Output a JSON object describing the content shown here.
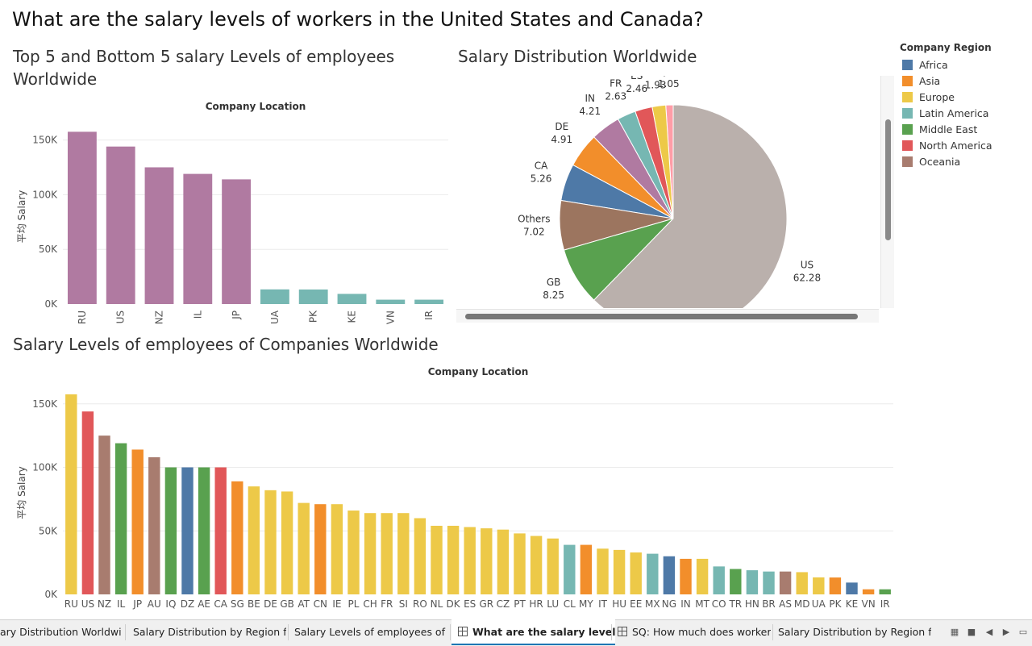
{
  "title": "What are the salary levels of workers in the United States and Canada?",
  "colors": {
    "Africa": "#4e79a7",
    "Asia": "#f28e2b",
    "Europe": "#edc948",
    "Latin America": "#76b7b2",
    "Middle East": "#59a14f",
    "North America": "#e15759",
    "Oceania": "#a87c6f"
  },
  "legend": {
    "title": "Company Region",
    "items": [
      "Africa",
      "Asia",
      "Europe",
      "Latin America",
      "Middle East",
      "North America",
      "Oceania"
    ]
  },
  "chart_data": [
    {
      "id": "top-bottom",
      "type": "bar",
      "title": "Top 5 and Bottom 5 salary Levels of employees Worldwide",
      "header": "Company Location",
      "ylabel": "平均 Salary",
      "yticks": [
        0,
        50000,
        100000,
        150000
      ],
      "ytick_labels": [
        "0K",
        "50K",
        "100K",
        "150K"
      ],
      "ylim": [
        0,
        160000
      ],
      "categories": [
        "RU",
        "US",
        "NZ",
        "IL",
        "JP",
        "UA",
        "PK",
        "KE",
        "VN",
        "IR"
      ],
      "values": [
        157500,
        144000,
        125000,
        119000,
        114000,
        13400,
        13300,
        9300,
        4000,
        4000
      ],
      "bar_colors": [
        "#b07aa1",
        "#b07aa1",
        "#b07aa1",
        "#b07aa1",
        "#b07aa1",
        "#76b7b2",
        "#76b7b2",
        "#76b7b2",
        "#76b7b2",
        "#76b7b2"
      ]
    },
    {
      "id": "pie",
      "type": "pie",
      "title": "Salary Distribution Worldwide",
      "slices": [
        {
          "label": "JP",
          "value": 1.05,
          "color": "#ff9da7"
        },
        {
          "label": "GR",
          "value": 1.93,
          "color": "#edc948"
        },
        {
          "label": "ES",
          "value": 2.46,
          "color": "#e15759"
        },
        {
          "label": "FR",
          "value": 2.63,
          "color": "#76b7b2"
        },
        {
          "label": "IN",
          "value": 4.21,
          "color": "#b07aa1"
        },
        {
          "label": "DE",
          "value": 4.91,
          "color": "#f28e2b"
        },
        {
          "label": "CA",
          "value": 5.26,
          "color": "#4e79a7"
        },
        {
          "label": "Others",
          "value": 7.02,
          "color": "#9c755f"
        },
        {
          "label": "GB",
          "value": 8.25,
          "color": "#59a14f"
        },
        {
          "label": "US",
          "value": 62.28,
          "color": "#bab0ac"
        }
      ]
    },
    {
      "id": "all-countries",
      "type": "bar",
      "title": "Salary Levels of employees of Companies Worldwide",
      "header": "Company Location",
      "ylabel": "平均 Salary",
      "yticks": [
        0,
        50000,
        100000,
        150000
      ],
      "ytick_labels": [
        "0K",
        "50K",
        "100K",
        "150K"
      ],
      "ylim": [
        0,
        160000
      ],
      "categories": [
        "RU",
        "US",
        "NZ",
        "IL",
        "JP",
        "AU",
        "IQ",
        "DZ",
        "AE",
        "CA",
        "SG",
        "BE",
        "DE",
        "GB",
        "AT",
        "CN",
        "IE",
        "PL",
        "CH",
        "FR",
        "SI",
        "RO",
        "NL",
        "DK",
        "ES",
        "GR",
        "CZ",
        "PT",
        "HR",
        "LU",
        "CL",
        "MY",
        "IT",
        "HU",
        "EE",
        "MX",
        "NG",
        "IN",
        "MT",
        "CO",
        "TR",
        "HN",
        "BR",
        "AS",
        "MD",
        "UA",
        "PK",
        "KE",
        "VN",
        "IR"
      ],
      "regions": [
        "Europe",
        "North America",
        "Oceania",
        "Middle East",
        "Asia",
        "Oceania",
        "Middle East",
        "Africa",
        "Middle East",
        "North America",
        "Asia",
        "Europe",
        "Europe",
        "Europe",
        "Europe",
        "Asia",
        "Europe",
        "Europe",
        "Europe",
        "Europe",
        "Europe",
        "Europe",
        "Europe",
        "Europe",
        "Europe",
        "Europe",
        "Europe",
        "Europe",
        "Europe",
        "Europe",
        "Latin America",
        "Asia",
        "Europe",
        "Europe",
        "Europe",
        "Latin America",
        "Africa",
        "Asia",
        "Europe",
        "Latin America",
        "Middle East",
        "Latin America",
        "Latin America",
        "Oceania",
        "Europe",
        "Europe",
        "Asia",
        "Africa",
        "Asia",
        "Middle East"
      ],
      "values": [
        157500,
        144000,
        125000,
        119000,
        114000,
        108000,
        100000,
        100000,
        100000,
        100000,
        89000,
        85000,
        82000,
        81000,
        72000,
        71000,
        71000,
        66000,
        64000,
        64000,
        64000,
        60000,
        54000,
        54000,
        53000,
        52000,
        51000,
        48000,
        46000,
        44000,
        39000,
        39000,
        36000,
        35000,
        33000,
        32000,
        30000,
        28000,
        28000,
        22000,
        20000,
        19000,
        18000,
        18000,
        17500,
        13400,
        13300,
        9300,
        4000,
        4000
      ]
    }
  ],
  "tabs": [
    {
      "label": "ary Distribution Worldwide"
    },
    {
      "label": "Salary Distribution by Region for..."
    },
    {
      "label": "Salary Levels of employees of Co..."
    },
    {
      "label": "What are the salary levels o..."
    },
    {
      "label": "SQ: How much does workers ..."
    },
    {
      "label": "Salary Distribution by Region for..."
    }
  ]
}
